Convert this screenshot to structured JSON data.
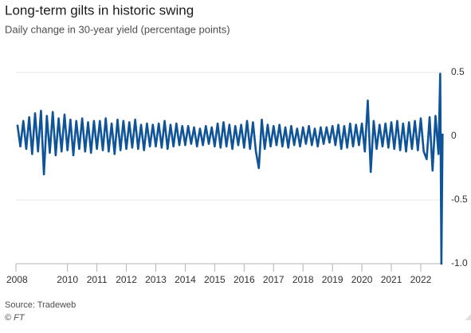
{
  "chart_data": {
    "type": "line",
    "title": "Long-term gilts in historic swing",
    "subtitle": "Daily change in 30-year yield (percentage points)",
    "source": "Source: Tradeweb",
    "credit": "© FT",
    "x": [
      2008.3,
      2008.4,
      2008.5,
      2008.6,
      2008.7,
      2008.8,
      2008.9,
      2009.0,
      2009.1,
      2009.2,
      2009.3,
      2009.4,
      2009.5,
      2009.6,
      2009.7,
      2009.8,
      2009.9,
      2010.0,
      2010.1,
      2010.2,
      2010.3,
      2010.4,
      2010.5,
      2010.6,
      2010.7,
      2010.8,
      2010.9,
      2011.0,
      2011.1,
      2011.2,
      2011.3,
      2011.4,
      2011.5,
      2011.6,
      2011.7,
      2011.8,
      2011.9,
      2012.0,
      2012.1,
      2012.2,
      2012.3,
      2012.4,
      2012.5,
      2012.6,
      2012.7,
      2012.8,
      2012.9,
      2013.0,
      2013.1,
      2013.2,
      2013.3,
      2013.4,
      2013.5,
      2013.6,
      2013.7,
      2013.8,
      2013.9,
      2014.0,
      2014.1,
      2014.2,
      2014.3,
      2014.4,
      2014.5,
      2014.6,
      2014.7,
      2014.8,
      2014.9,
      2015.0,
      2015.1,
      2015.2,
      2015.3,
      2015.4,
      2015.5,
      2015.6,
      2015.7,
      2015.8,
      2015.9,
      2016.0,
      2016.1,
      2016.2,
      2016.3,
      2016.4,
      2016.5,
      2016.6,
      2016.7,
      2016.8,
      2016.9,
      2017.0,
      2017.1,
      2017.2,
      2017.3,
      2017.4,
      2017.5,
      2017.6,
      2017.7,
      2017.8,
      2017.9,
      2018.0,
      2018.1,
      2018.2,
      2018.3,
      2018.4,
      2018.5,
      2018.6,
      2018.7,
      2018.8,
      2018.9,
      2019.0,
      2019.1,
      2019.2,
      2019.3,
      2019.4,
      2019.5,
      2019.6,
      2019.7,
      2019.8,
      2019.9,
      2020.0,
      2020.1,
      2020.2,
      2020.3,
      2020.4,
      2020.5,
      2020.6,
      2020.7,
      2020.8,
      2020.9,
      2021.0,
      2021.1,
      2021.2,
      2021.3,
      2021.4,
      2021.5,
      2021.6,
      2021.7,
      2021.8,
      2021.9,
      2022.0,
      2022.1,
      2022.2,
      2022.3,
      2022.4,
      2022.5,
      2022.6,
      2022.66,
      2022.7,
      2022.74
    ],
    "series": [
      {
        "color": "#0f5499",
        "values": [
          0.09,
          -0.08,
          0.12,
          -0.1,
          0.15,
          -0.14,
          0.18,
          -0.12,
          0.2,
          -0.3,
          0.16,
          -0.13,
          0.19,
          -0.15,
          0.14,
          -0.12,
          0.17,
          -0.11,
          0.13,
          -0.15,
          0.12,
          -0.1,
          0.14,
          -0.12,
          0.11,
          -0.13,
          0.12,
          -0.1,
          0.12,
          -0.11,
          0.14,
          -0.12,
          0.1,
          -0.14,
          0.13,
          -0.11,
          0.12,
          -0.1,
          0.11,
          -0.09,
          0.13,
          -0.1,
          0.09,
          -0.11,
          0.1,
          -0.08,
          0.09,
          -0.08,
          0.1,
          -0.09,
          0.12,
          -0.1,
          0.09,
          -0.08,
          0.1,
          -0.07,
          0.08,
          -0.07,
          0.08,
          -0.06,
          0.07,
          -0.08,
          0.06,
          -0.07,
          0.08,
          -0.06,
          0.07,
          -0.08,
          0.1,
          -0.09,
          0.11,
          -0.08,
          0.09,
          -0.1,
          0.08,
          -0.07,
          0.09,
          -0.09,
          0.12,
          -0.1,
          0.11,
          -0.12,
          -0.25,
          0.13,
          -0.1,
          0.09,
          -0.08,
          0.08,
          -0.07,
          0.09,
          -0.08,
          0.07,
          -0.09,
          0.08,
          -0.07,
          0.06,
          -0.08,
          0.07,
          -0.06,
          0.08,
          -0.07,
          0.06,
          -0.08,
          0.07,
          -0.06,
          0.07,
          -0.05,
          0.08,
          -0.07,
          0.09,
          -0.1,
          0.08,
          -0.09,
          0.1,
          -0.08,
          0.09,
          -0.07,
          0.1,
          -0.12,
          0.28,
          -0.28,
          0.12,
          -0.1,
          0.09,
          -0.08,
          0.1,
          -0.09,
          0.11,
          -0.1,
          0.12,
          -0.11,
          0.1,
          -0.12,
          0.11,
          -0.1,
          0.12,
          -0.11,
          0.14,
          -0.12,
          -0.18,
          0.15,
          -0.27,
          0.16,
          -0.14,
          0.49,
          -1.0,
          0.02
        ]
      }
    ],
    "xlim": [
      2008.25,
      2022.75
    ],
    "xticks": [
      2008,
      2010,
      2011,
      2012,
      2013,
      2014,
      2015,
      2016,
      2017,
      2018,
      2019,
      2020,
      2021,
      2022
    ],
    "ylim": [
      -1,
      0.5
    ],
    "yticks": [
      0.5,
      0,
      -0.5,
      {
        "value": -1,
        "label": "-1.0"
      }
    ],
    "grid": true
  }
}
